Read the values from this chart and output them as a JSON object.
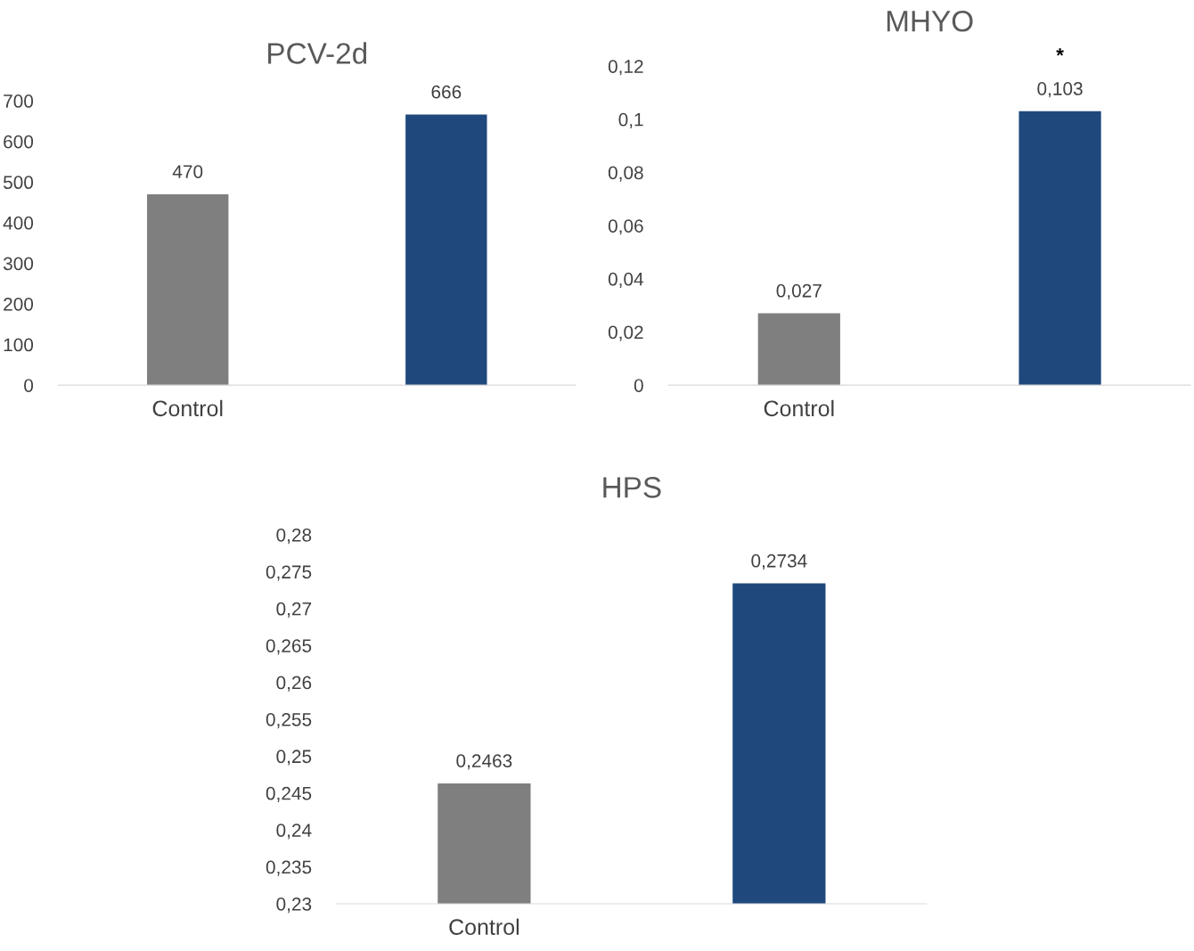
{
  "chart_data": [
    {
      "type": "bar",
      "title": "PCV-2d",
      "categories": [
        "Control",
        null
      ],
      "values": [
        470,
        666
      ],
      "colors": [
        "#7f7f7f",
        "#1f497d"
      ],
      "value_labels": [
        "470",
        "666"
      ],
      "ylim": [
        0,
        700
      ],
      "yticks": [
        0,
        100,
        200,
        300,
        400,
        500,
        600,
        700
      ],
      "grid": false,
      "legend": false
    },
    {
      "type": "bar",
      "title": "MHYO",
      "categories": [
        "Control",
        null
      ],
      "values": [
        0.027,
        0.103
      ],
      "colors": [
        "#7f7f7f",
        "#1f497d"
      ],
      "value_labels": [
        "0,027",
        "0,103"
      ],
      "ylim": [
        0,
        0.12
      ],
      "yticks": [
        0,
        {
          "value": 0.02,
          "label": "0,02"
        },
        {
          "value": 0.04,
          "label": "0,04"
        },
        {
          "value": 0.06,
          "label": "0,06"
        },
        {
          "value": 0.08,
          "label": "0,08"
        },
        {
          "value": 0.1,
          "label": "0,1"
        },
        {
          "value": 0.12,
          "label": "0,12"
        }
      ],
      "annotations": [
        "*"
      ],
      "grid": false,
      "legend": false
    },
    {
      "type": "bar",
      "title": "HPS",
      "categories": [
        "Control",
        null
      ],
      "values": [
        0.2463,
        0.2734
      ],
      "colors": [
        "#7f7f7f",
        "#1f497d"
      ],
      "value_labels": [
        "0,2463",
        "0,2734"
      ],
      "ylim": [
        0.23,
        0.28
      ],
      "yticks": [
        {
          "value": 0.23,
          "label": "0,23"
        },
        {
          "value": 0.235,
          "label": "0,235"
        },
        {
          "value": 0.24,
          "label": "0,24"
        },
        {
          "value": 0.245,
          "label": "0,245"
        },
        {
          "value": 0.25,
          "label": "0,25"
        },
        {
          "value": 0.255,
          "label": "0,255"
        },
        {
          "value": 0.26,
          "label": "0,26"
        },
        {
          "value": 0.265,
          "label": "0,265"
        },
        {
          "value": 0.27,
          "label": "0,27"
        },
        {
          "value": 0.275,
          "label": "0,275"
        },
        {
          "value": 0.28,
          "label": "0,28"
        }
      ],
      "grid": false,
      "legend": false
    }
  ]
}
